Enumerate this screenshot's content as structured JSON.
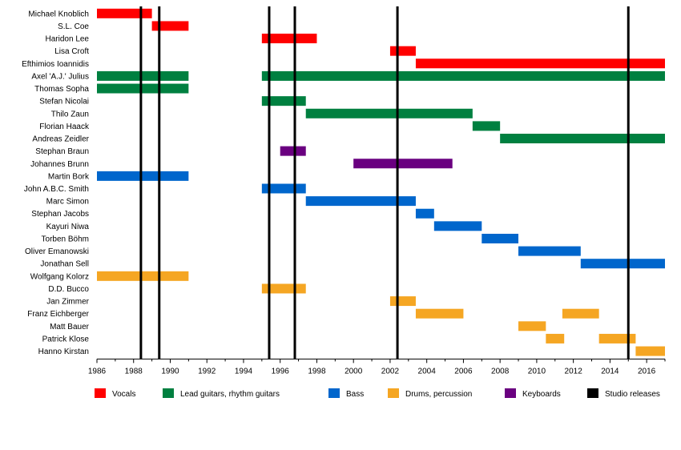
{
  "chart_data": {
    "type": "timeline",
    "title": "",
    "xlabel": "",
    "ylabel": "",
    "xlim": [
      1986,
      2017.0
    ],
    "x_ticks": [
      1986,
      1988,
      1990,
      1992,
      1994,
      1996,
      1998,
      2000,
      2002,
      2004,
      2006,
      2008,
      2010,
      2012,
      2014,
      2016
    ],
    "colors": {
      "vocals": "#ff0000",
      "guitars": "#008040",
      "bass": "#0066cc",
      "drums": "#f5a623",
      "keyboards": "#6a0080",
      "releases": "#000000"
    },
    "members": [
      {
        "name": "Michael Knoblich",
        "bars": [
          {
            "role": "vocals",
            "start": 1986.0,
            "end": 1989.0
          }
        ]
      },
      {
        "name": "S.L. Coe",
        "bars": [
          {
            "role": "vocals",
            "start": 1989.0,
            "end": 1991.0
          }
        ]
      },
      {
        "name": "Haridon Lee",
        "bars": [
          {
            "role": "vocals",
            "start": 1995.0,
            "end": 1998.0
          }
        ]
      },
      {
        "name": "Lisa Croft",
        "bars": [
          {
            "role": "vocals",
            "start": 2002.0,
            "end": 2003.4
          }
        ]
      },
      {
        "name": "Efthimios Ioannidis",
        "bars": [
          {
            "role": "vocals",
            "start": 2003.4,
            "end": 2017.0
          }
        ]
      },
      {
        "name": "Axel 'A.J.' Julius",
        "bars": [
          {
            "role": "guitars",
            "start": 1986.0,
            "end": 1991.0
          },
          {
            "role": "guitars",
            "start": 1995.0,
            "end": 2017.0
          }
        ]
      },
      {
        "name": "Thomas Sopha",
        "bars": [
          {
            "role": "guitars",
            "start": 1986.0,
            "end": 1991.0
          }
        ]
      },
      {
        "name": "Stefan Nicolai",
        "bars": [
          {
            "role": "guitars",
            "start": 1995.0,
            "end": 1997.4
          }
        ]
      },
      {
        "name": "Thilo Zaun",
        "bars": [
          {
            "role": "guitars",
            "start": 1997.4,
            "end": 2006.5
          }
        ]
      },
      {
        "name": "Florian Haack",
        "bars": [
          {
            "role": "guitars",
            "start": 2006.5,
            "end": 2008.0
          }
        ]
      },
      {
        "name": "Andreas Zeidler",
        "bars": [
          {
            "role": "guitars",
            "start": 2008.0,
            "end": 2017.0
          }
        ]
      },
      {
        "name": "Stephan Braun",
        "bars": [
          {
            "role": "keyboards",
            "start": 1996.0,
            "end": 1997.4
          }
        ]
      },
      {
        "name": "Johannes Brunn",
        "bars": [
          {
            "role": "keyboards",
            "start": 2000.0,
            "end": 2005.4
          }
        ]
      },
      {
        "name": "Martin Bork",
        "bars": [
          {
            "role": "bass",
            "start": 1986.0,
            "end": 1991.0
          }
        ]
      },
      {
        "name": "John A.B.C. Smith",
        "bars": [
          {
            "role": "bass",
            "start": 1995.0,
            "end": 1997.4
          }
        ]
      },
      {
        "name": "Marc Simon",
        "bars": [
          {
            "role": "bass",
            "start": 1997.4,
            "end": 2003.4
          }
        ]
      },
      {
        "name": "Stephan Jacobs",
        "bars": [
          {
            "role": "bass",
            "start": 2003.4,
            "end": 2004.4
          }
        ]
      },
      {
        "name": "Kayuri Niwa",
        "bars": [
          {
            "role": "bass",
            "start": 2004.4,
            "end": 2007.0
          }
        ]
      },
      {
        "name": "Torben Böhm",
        "bars": [
          {
            "role": "bass",
            "start": 2007.0,
            "end": 2009.0
          }
        ]
      },
      {
        "name": "Oliver Emanowski",
        "bars": [
          {
            "role": "bass",
            "start": 2009.0,
            "end": 2012.4
          }
        ]
      },
      {
        "name": "Jonathan Sell",
        "bars": [
          {
            "role": "bass",
            "start": 2012.4,
            "end": 2017.0
          }
        ]
      },
      {
        "name": "Wolfgang Kolorz",
        "bars": [
          {
            "role": "drums",
            "start": 1986.0,
            "end": 1991.0
          }
        ]
      },
      {
        "name": "D.D. Bucco",
        "bars": [
          {
            "role": "drums",
            "start": 1995.0,
            "end": 1997.4
          }
        ]
      },
      {
        "name": "Jan Zimmer",
        "bars": [
          {
            "role": "drums",
            "start": 2002.0,
            "end": 2003.4
          }
        ]
      },
      {
        "name": "Franz Eichberger",
        "bars": [
          {
            "role": "drums",
            "start": 2003.4,
            "end": 2006.0
          },
          {
            "role": "drums",
            "start": 2011.4,
            "end": 2013.4
          }
        ]
      },
      {
        "name": "Matt Bauer",
        "bars": [
          {
            "role": "drums",
            "start": 2009.0,
            "end": 2010.5
          }
        ]
      },
      {
        "name": "Patrick Klose",
        "bars": [
          {
            "role": "drums",
            "start": 2010.5,
            "end": 2011.5
          },
          {
            "role": "drums",
            "start": 2013.4,
            "end": 2015.4
          }
        ]
      },
      {
        "name": "Hanno Kirstan",
        "bars": [
          {
            "role": "drums",
            "start": 2015.4,
            "end": 2017.0
          }
        ]
      }
    ],
    "studio_releases": [
      1988.4,
      1989.4,
      1995.4,
      1996.8,
      2002.4,
      2015.0
    ],
    "legend": [
      {
        "role": "vocals",
        "label": "Vocals"
      },
      {
        "role": "guitars",
        "label": "Lead guitars, rhythm guitars"
      },
      {
        "role": "bass",
        "label": "Bass"
      },
      {
        "role": "drums",
        "label": "Drums, percussion"
      },
      {
        "role": "keyboards",
        "label": "Keyboards"
      },
      {
        "role": "releases",
        "label": "Studio releases"
      }
    ]
  }
}
